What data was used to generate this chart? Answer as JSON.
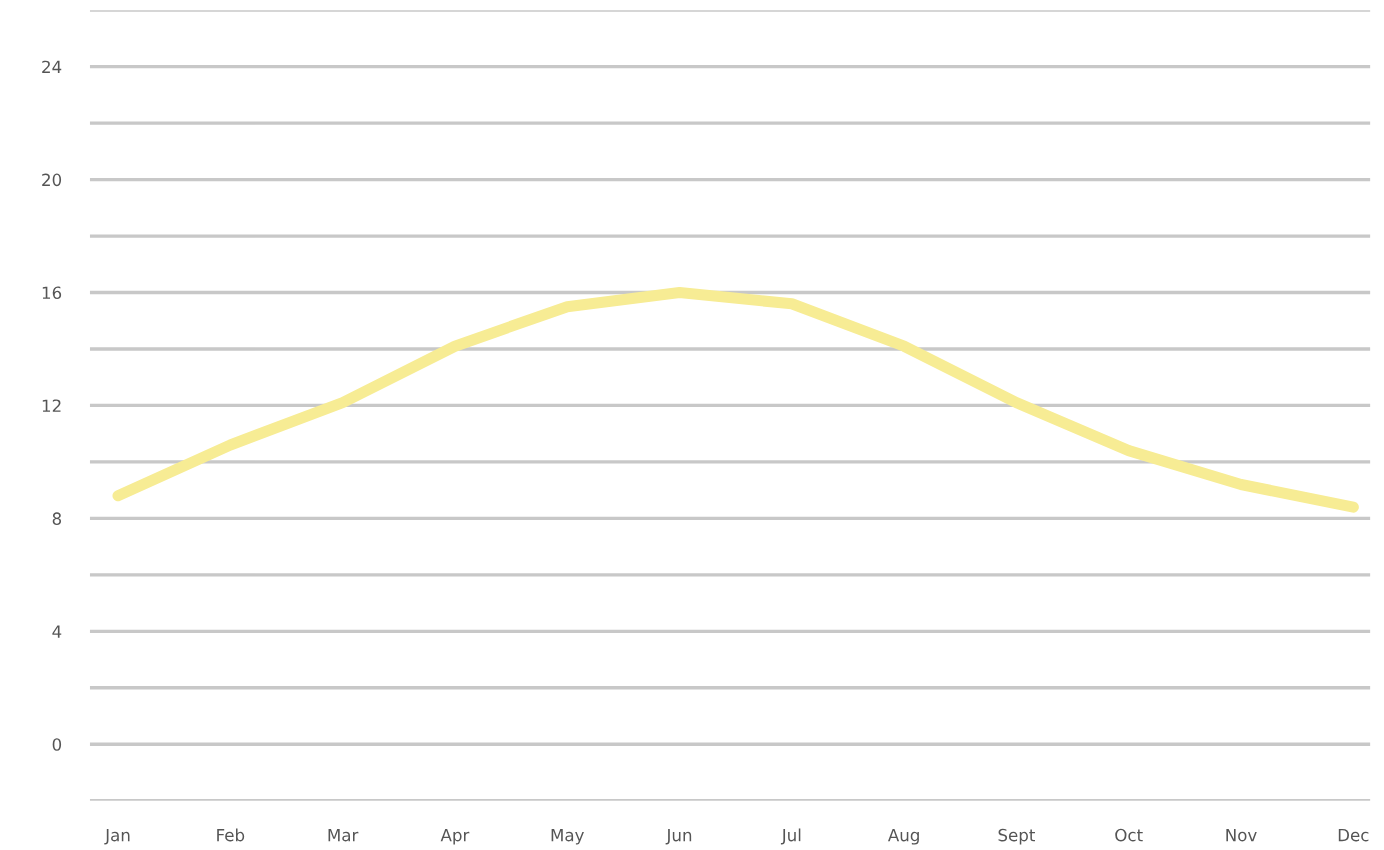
{
  "chart_data": {
    "type": "line",
    "categories": [
      "Jan",
      "Feb",
      "Mar",
      "Apr",
      "May",
      "Jun",
      "Jul",
      "Aug",
      "Sept",
      "Oct",
      "Nov",
      "Dec"
    ],
    "series": [
      {
        "color": "#f7ec94",
        "values": [
          8.8,
          10.6,
          12.1,
          14.1,
          15.5,
          16.0,
          15.6,
          14.1,
          12.1,
          10.4,
          9.2,
          8.4
        ]
      }
    ],
    "ylim": [
      -2,
      26
    ],
    "yticks": [
      {
        "value": -2,
        "label": null
      },
      0,
      {
        "value": 2,
        "label": null
      },
      4,
      {
        "value": 6,
        "label": null
      },
      8,
      {
        "value": 10,
        "label": null
      },
      12,
      {
        "value": 14,
        "label": null
      },
      16,
      {
        "value": 18,
        "label": null
      },
      20,
      {
        "value": 22,
        "label": null
      },
      24,
      {
        "value": 26,
        "label": null
      }
    ],
    "grid": "y",
    "marker": "none",
    "line_style": "solid"
  }
}
